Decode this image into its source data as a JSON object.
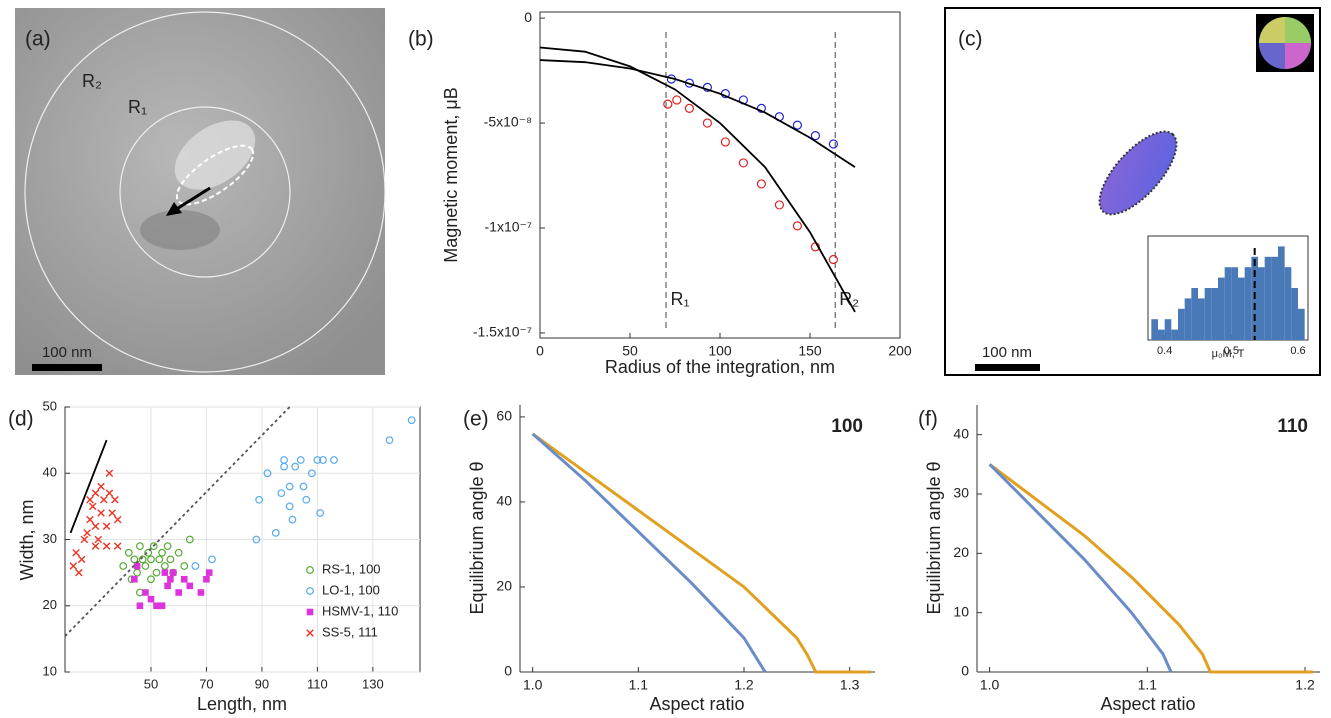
{
  "images": {
    "a": {
      "panel_label": "(a)",
      "labels": [
        "R₂",
        "R₁"
      ],
      "scale_bar": "100 nm"
    },
    "c": {
      "panel_label": "(c)",
      "scale_bar": "100 nm"
    }
  },
  "chart_data": [
    {
      "type": "scatter",
      "panel_label": "(b)",
      "xlabel": "Radius of the integration, nm",
      "ylabel": "Magnetic moment, μB",
      "xlim": [
        0,
        200
      ],
      "xticks": [
        0,
        50,
        100,
        150,
        200
      ],
      "ylim": [
        -1.524e-07,
        2.9e-09
      ],
      "yticks": [
        0,
        {
          "value": -5e-08,
          "label": "-5x10⁻⁸"
        },
        {
          "value": -1e-07,
          "label": "-1x10⁻⁷"
        },
        {
          "value": -1.5e-07,
          "label": "-1.5x10⁻⁷"
        }
      ],
      "vlines": [
        {
          "x": 70,
          "label": "R₁"
        },
        {
          "x": 164,
          "label": "R₂"
        }
      ],
      "series": [
        {
          "mode": "markers",
          "marker": "circle-open",
          "color": "#2222dd",
          "x": [
            73,
            83,
            93,
            103,
            113,
            123,
            133,
            143,
            153,
            163
          ],
          "y": [
            -2.9e-08,
            -3.1e-08,
            -3.3e-08,
            -3.6e-08,
            -3.9e-08,
            -4.3e-08,
            -4.7e-08,
            -5.1e-08,
            -5.6e-08,
            -6e-08
          ]
        },
        {
          "mode": "markers",
          "marker": "circle-open",
          "color": "#dd2222",
          "x": [
            71,
            76,
            83,
            93,
            103,
            113,
            123,
            133,
            143,
            153,
            163
          ],
          "y": [
            -4.1e-08,
            -3.9e-08,
            -4.3e-08,
            -5e-08,
            -5.9e-08,
            -6.9e-08,
            -7.9e-08,
            -8.9e-08,
            -9.9e-08,
            -1.09e-07,
            -1.15e-07
          ]
        },
        {
          "mode": "lines",
          "color": "#000000",
          "x": [
            0,
            25,
            50,
            75,
            100,
            125,
            150,
            175
          ],
          "y": [
            -2e-08,
            -2.1e-08,
            -2.4e-08,
            -2.9e-08,
            -3.6e-08,
            -4.5e-08,
            -5.7e-08,
            -7.1e-08
          ]
        },
        {
          "mode": "lines",
          "color": "#000000",
          "x": [
            0,
            25,
            50,
            75,
            100,
            125,
            150,
            175
          ],
          "y": [
            -1.4e-08,
            -1.6e-08,
            -2.3e-08,
            -3.4e-08,
            -5e-08,
            -7.1e-08,
            -1.02e-07,
            -1.4e-07
          ]
        }
      ]
    },
    {
      "type": "histogram",
      "xlabel": "μ₀M, T",
      "bins": [
        0.38,
        0.39,
        0.4,
        0.41,
        0.42,
        0.43,
        0.44,
        0.45,
        0.46,
        0.47,
        0.48,
        0.49,
        0.5,
        0.51,
        0.52,
        0.53,
        0.54,
        0.55,
        0.56,
        0.57,
        0.58,
        0.59,
        0.6,
        0.61
      ],
      "values": [
        2,
        1,
        2,
        1,
        3,
        4,
        5,
        4,
        5,
        5,
        6,
        7,
        7,
        6,
        7,
        8,
        7,
        8,
        8,
        9,
        7,
        5,
        3
      ],
      "color": "#4a79b8",
      "xlim": [
        0.375,
        0.615
      ],
      "xticks": [
        0.4,
        0.5,
        0.6
      ],
      "ylim": [
        0,
        10
      ],
      "vline": 0.535
    },
    {
      "type": "scatter",
      "panel_label": "(d)",
      "xlabel": "Length, nm",
      "ylabel": "Width, nm",
      "xlim": [
        19,
        147
      ],
      "xticks": [
        50,
        70,
        90,
        110,
        130
      ],
      "ylim": [
        10,
        50
      ],
      "yticks": [
        10,
        20,
        30,
        40,
        50
      ],
      "grid": true,
      "legend": "lower right",
      "series": [
        {
          "name": "RS-1, 100",
          "mode": "markers",
          "marker": "circle-open",
          "color": "#55aa33",
          "x": [
            40,
            42,
            43,
            44,
            45,
            46,
            47,
            48,
            49,
            50,
            51,
            52,
            53,
            54,
            55,
            56,
            57,
            58,
            60,
            62,
            64,
            46,
            50
          ],
          "y": [
            26,
            28,
            24,
            27,
            25,
            29,
            27,
            26,
            28,
            27,
            29,
            25,
            27,
            28,
            26,
            29,
            27,
            25,
            28,
            26,
            30,
            22,
            24
          ]
        },
        {
          "name": "LO-1, 100",
          "mode": "markers",
          "marker": "circle-open",
          "color": "#55aaee",
          "x": [
            66,
            72,
            88,
            89,
            92,
            95,
            97,
            98,
            98,
            100,
            100,
            101,
            102,
            104,
            105,
            106,
            108,
            110,
            111,
            112,
            116,
            136,
            144
          ],
          "y": [
            26,
            27,
            30,
            36,
            40,
            31,
            37,
            41,
            42,
            35,
            38,
            33,
            41,
            42,
            38,
            36,
            40,
            42,
            34,
            42,
            42,
            45,
            48
          ]
        },
        {
          "name": "HSMV-1, 110",
          "mode": "markers",
          "marker": "square",
          "color": "#dd33dd",
          "x": [
            44,
            46,
            48,
            50,
            52,
            54,
            56,
            57,
            58,
            60,
            62,
            64,
            68,
            70,
            71,
            55,
            45
          ],
          "y": [
            24,
            20,
            22,
            21,
            20,
            20,
            23,
            24,
            25,
            22,
            24,
            23,
            22,
            24,
            25,
            25,
            26
          ]
        },
        {
          "name": "SS-5, 111",
          "mode": "markers",
          "marker": "x",
          "color": "#ee3322",
          "x": [
            22,
            23,
            24,
            25,
            26,
            27,
            28,
            28,
            29,
            30,
            30,
            31,
            32,
            32,
            33,
            34,
            35,
            35,
            36,
            37,
            38,
            38,
            34,
            30
          ],
          "y": [
            26,
            28,
            25,
            27,
            30,
            31,
            33,
            36,
            35,
            37,
            32,
            30,
            34,
            38,
            36,
            32,
            40,
            37,
            34,
            36,
            29,
            33,
            29,
            29
          ]
        },
        {
          "mode": "lines",
          "color": "#000000",
          "x": [
            21,
            34
          ],
          "y": [
            31,
            45
          ]
        },
        {
          "mode": "lines",
          "color": "#555555",
          "dashed": true,
          "x": [
            19,
            100
          ],
          "y": [
            15.4,
            50
          ]
        }
      ]
    },
    {
      "type": "line",
      "panel_label": "(e)",
      "xlabel": "Aspect ratio",
      "ylabel": "Equilibrium angle θ",
      "annotation": "100",
      "xlim": [
        0.988,
        1.324
      ],
      "xticks": [
        {
          "value": 1,
          "label": "1.0"
        },
        1.1,
        1.2,
        1.3
      ],
      "ylim": [
        0,
        62.8
      ],
      "yticks": [
        0,
        20,
        40,
        60
      ],
      "series": [
        {
          "color": "#e0a020",
          "x": [
            1.0,
            1.05,
            1.1,
            1.15,
            1.2,
            1.25,
            1.26,
            1.268,
            1.32
          ],
          "y": [
            56,
            47,
            38,
            29,
            20,
            8,
            4,
            0,
            0
          ]
        },
        {
          "color": "#6a8cc7",
          "x": [
            1.0,
            1.05,
            1.1,
            1.15,
            1.2,
            1.21,
            1.22
          ],
          "y": [
            56,
            45,
            33,
            21,
            8,
            4,
            0
          ]
        }
      ]
    },
    {
      "type": "line",
      "panel_label": "(f)",
      "xlabel": "Aspect ratio",
      "ylabel": "Equilibrium angle θ",
      "annotation": "110",
      "xlim": [
        0.992,
        1.2095
      ],
      "xticks": [
        {
          "value": 1,
          "label": "1.0"
        },
        1.1,
        1.2
      ],
      "ylim": [
        0,
        45
      ],
      "yticks": [
        0,
        10,
        20,
        30,
        40
      ],
      "series": [
        {
          "color": "#e0a020",
          "x": [
            1.0,
            1.03,
            1.06,
            1.09,
            1.12,
            1.135,
            1.14,
            1.205
          ],
          "y": [
            35,
            29,
            23,
            16,
            8,
            3,
            0,
            0
          ]
        },
        {
          "color": "#6a8cc7",
          "x": [
            1.0,
            1.03,
            1.06,
            1.09,
            1.11,
            1.115
          ],
          "y": [
            35,
            27,
            19,
            10,
            3,
            0
          ]
        }
      ]
    }
  ]
}
